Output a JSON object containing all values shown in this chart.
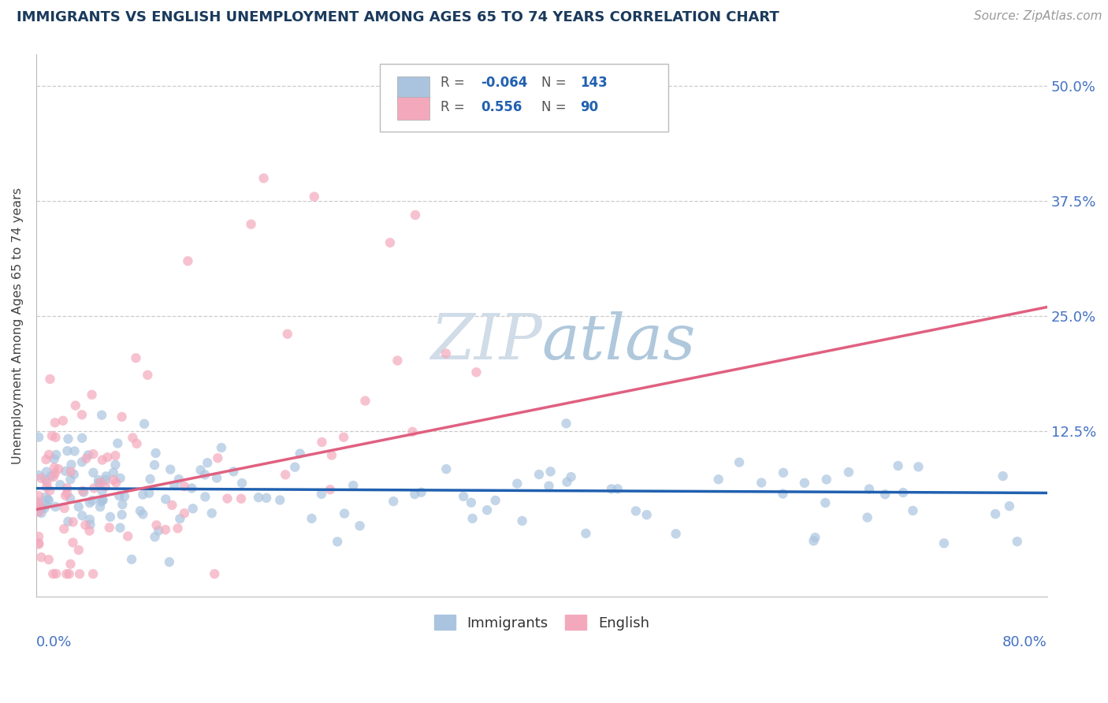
{
  "title": "IMMIGRANTS VS ENGLISH UNEMPLOYMENT AMONG AGES 65 TO 74 YEARS CORRELATION CHART",
  "source": "Source: ZipAtlas.com",
  "ylabel": "Unemployment Among Ages 65 to 74 years",
  "ytick_labels": [
    "12.5%",
    "25.0%",
    "37.5%",
    "50.0%"
  ],
  "ytick_values": [
    0.125,
    0.25,
    0.375,
    0.5
  ],
  "xmin": 0.0,
  "xmax": 0.8,
  "ymin": -0.055,
  "ymax": 0.535,
  "immigrants_R": -0.064,
  "immigrants_N": 143,
  "english_R": 0.556,
  "english_N": 90,
  "immigrants_color": "#aac4df",
  "english_color": "#f4a8bc",
  "immigrants_line_color": "#2060b0",
  "english_line_color": "#e06080",
  "legend_color": "#2060b0",
  "title_color": "#1a3a5c",
  "source_color": "#999999",
  "ytick_color": "#4472c4",
  "xtick_color": "#4472c4",
  "background_color": "#ffffff",
  "grid_color": "#cccccc",
  "watermark_text": "ZIPatlas",
  "watermark_color": "#d0dce8",
  "imm_line_x0": 0.0,
  "imm_line_x1": 0.8,
  "imm_line_y0": 0.063,
  "imm_line_y1": 0.058,
  "eng_line_x0": 0.0,
  "eng_line_x1": 0.8,
  "eng_line_y0": 0.04,
  "eng_line_y1": 0.26
}
